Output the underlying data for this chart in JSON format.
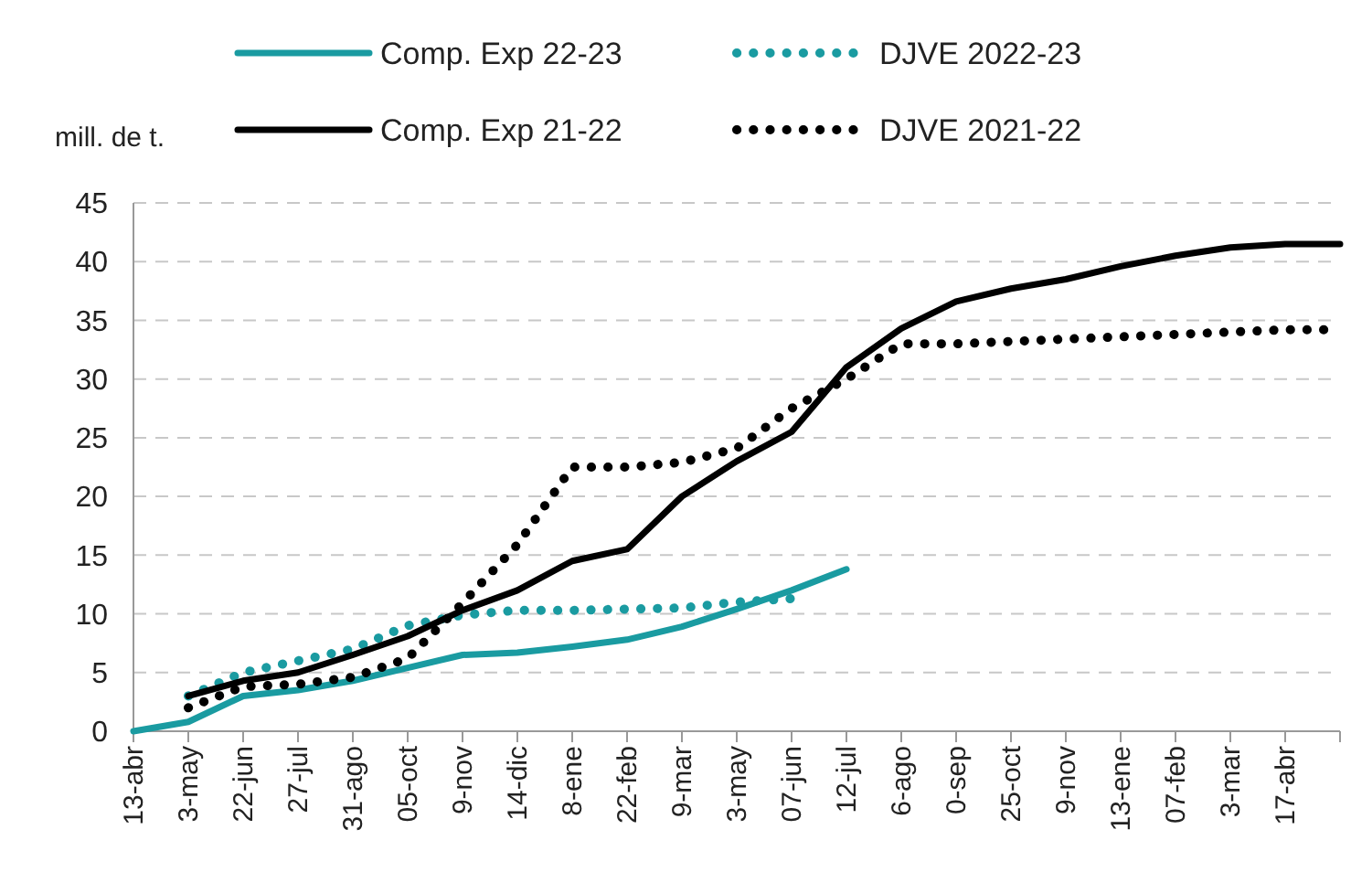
{
  "chart_data": {
    "type": "line",
    "ylabel": "mill. de t.",
    "categories": [
      "13-abr",
      "3-may",
      "22-jun",
      "27-jul",
      "31-ago",
      "05-oct",
      "9-nov",
      "14-dic",
      "8-ene",
      "22-feb",
      "9-mar",
      "3-may",
      "07-jun",
      "12-jul",
      "6-ago",
      "0-sep",
      "25-oct",
      "9-nov",
      "13-ene",
      "07-feb",
      "3-mar",
      "17-abr",
      null
    ],
    "ylim": [
      0,
      45
    ],
    "yticks": [
      0,
      5,
      10,
      15,
      20,
      25,
      30,
      35,
      40,
      45
    ],
    "grid": "y",
    "legend": "top",
    "marker": "none",
    "series": [
      {
        "name": "Comp. Exp 22-23",
        "color": "#1a9ba1",
        "line_style": "solid",
        "values": [
          0,
          0.8,
          3,
          3.5,
          4.3,
          5.4,
          6.5,
          6.7,
          7.2,
          7.8,
          8.9,
          10.4,
          12,
          13.8,
          null,
          null,
          null,
          null,
          null,
          null,
          null,
          null,
          null
        ]
      },
      {
        "name": "DJVE 2022-23",
        "color": "#1a9ba1",
        "line_style": "dotted",
        "values": [
          null,
          3,
          5,
          6,
          7,
          9,
          9.9,
          10.3,
          10.3,
          10.4,
          10.5,
          11,
          11.3,
          null,
          null,
          null,
          null,
          null,
          null,
          null,
          null,
          null,
          null
        ]
      },
      {
        "name": "Comp. Exp 21-22",
        "color": "#000000",
        "line_style": "solid",
        "values": [
          null,
          3,
          4.3,
          5,
          6.5,
          8.1,
          10.3,
          12,
          14.5,
          15.5,
          20,
          23,
          25.5,
          31,
          34.3,
          36.6,
          37.7,
          38.5,
          39.6,
          40.5,
          41.2,
          41.5,
          41.5
        ]
      },
      {
        "name": "DJVE 2021-22",
        "color": "#000000",
        "line_style": "dotted",
        "values": [
          null,
          2,
          3.8,
          4,
          4.6,
          6.2,
          10.9,
          15.9,
          22.5,
          22.5,
          22.9,
          24.1,
          27.5,
          30,
          33,
          33,
          33.2,
          33.4,
          33.6,
          33.8,
          34,
          34.2,
          34.2
        ]
      }
    ]
  }
}
